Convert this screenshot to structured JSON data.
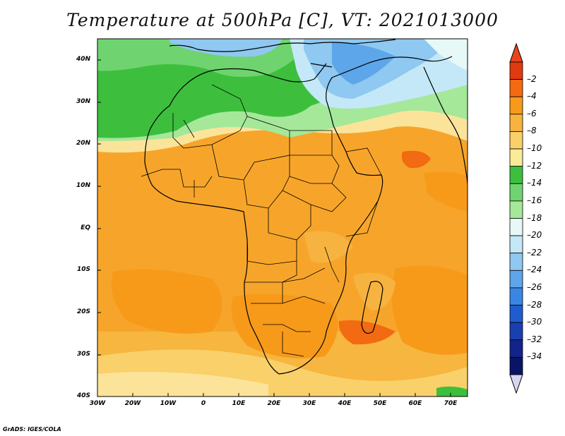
{
  "title": "Temperature at 500hPa [C], VT: 2021013000",
  "lat_labels": [
    "40N",
    "30N",
    "20N",
    "10N",
    "EQ",
    "10S",
    "20S",
    "30S",
    "40S"
  ],
  "lon_labels": [
    "30W",
    "20W",
    "10W",
    "0",
    "10E",
    "20E",
    "30E",
    "40E",
    "50E",
    "60E",
    "70E"
  ],
  "colorbar": {
    "labels": [
      "-2",
      "-4",
      "-6",
      "-8",
      "-10",
      "-12",
      "-14",
      "-16",
      "-18",
      "-20",
      "-22",
      "-24",
      "-26",
      "-28",
      "-30",
      "-32",
      "-34"
    ],
    "colors": [
      "#e03a10",
      "#f26a12",
      "#f79a1a",
      "#f6b33f",
      "#fad06a",
      "#fbea9a",
      "#3dbf3d",
      "#6fd46f",
      "#a5e89a",
      "#e6f9f6",
      "#c4e8f8",
      "#8fc8f0",
      "#5ea6ea",
      "#3a86e3",
      "#1f5ccf",
      "#1a3fb0",
      "#12248a",
      "#0a1466"
    ],
    "top_arrow_color": "#e8441a",
    "bottom_arrow_color": "#d8d4f4"
  },
  "footer": "GrADS: IGES/COLA"
}
